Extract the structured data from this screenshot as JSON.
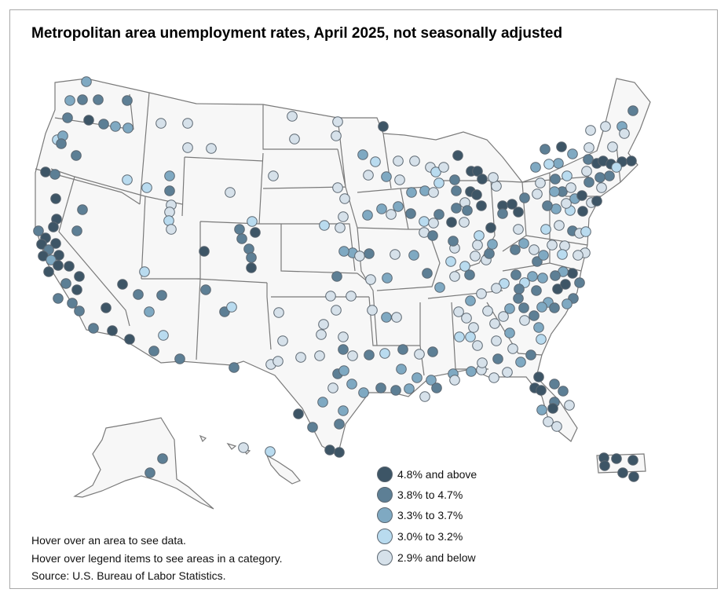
{
  "title": "Metropolitan area unemployment rates, April 2025, not seasonally adjusted",
  "legend": [
    {
      "label": "4.8% and above",
      "color": "#3d5566"
    },
    {
      "label": "3.8% to 4.7%",
      "color": "#5d7f95"
    },
    {
      "label": "3.3% to 3.7%",
      "color": "#7fa9c2"
    },
    {
      "label": "3.0% to 3.2%",
      "color": "#b9dbef"
    },
    {
      "label": "2.9% and below",
      "color": "#d6e1ea"
    }
  ],
  "notes": {
    "hover_area": "Hover over an area to see data.",
    "hover_legend": "Hover over legend items to see areas in a category.",
    "source": "Source: U.S. Bureau of Labor Statistics."
  }
}
